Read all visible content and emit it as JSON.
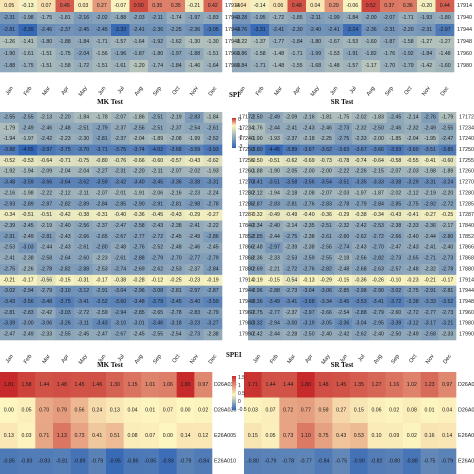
{
  "chart_data": [
    {
      "type": "heatmap",
      "section": "SPI",
      "panel": "MK Test",
      "title": "",
      "columns": [
        "Jan",
        "Feb",
        "Mar",
        "Apr",
        "May",
        "Jun",
        "Jul",
        "Aug",
        "Sep",
        "Oct",
        "Nov",
        "Dec"
      ],
      "rows": [
        "17914",
        "17940",
        "17944",
        "17948",
        "17960",
        "17980"
      ],
      "values": [
        [
          0.05,
          -0.13,
          0.07,
          0.45,
          0.03,
          0.27,
          -0.07,
          0.5,
          0.35,
          0.35,
          -0.21,
          0.42
        ],
        [
          -2.31,
          -1.98,
          -1.75,
          -1.81,
          -2.16,
          -2.02,
          -1.88,
          -2.03,
          -2.11,
          -1.74,
          -1.97,
          -1.83
        ],
        [
          -2.81,
          -3.39,
          -2.46,
          -2.37,
          -2.45,
          -2.45,
          -3.33,
          -2.41,
          -2.36,
          -2.25,
          -2.36,
          -3.05
        ],
        [
          -1.26,
          -1.41,
          -1.8,
          -1.88,
          -1.84,
          -1.71,
          -1.57,
          -1.64,
          -1.92,
          -1.62,
          -1.3,
          -1.3
        ],
        [
          -1.9,
          -1.61,
          -1.51,
          -1.75,
          -2.04,
          -1.56,
          -1.96,
          -1.87,
          -1.8,
          -1.97,
          -1.88,
          -1.51
        ],
        [
          -1.88,
          -1.75,
          -1.51,
          -1.58,
          -1.72,
          -1.51,
          -1.61,
          -1.2,
          -1.74,
          -1.84,
          -1.46,
          -1.64
        ]
      ]
    },
    {
      "type": "heatmap",
      "section": "SPI",
      "panel": "SR Test",
      "title": "",
      "columns": [
        "Jan",
        "Feb",
        "Mar",
        "Apr",
        "May",
        "Jun",
        "Jul",
        "Aug",
        "Sep",
        "Oct",
        "Nov",
        "Dec"
      ],
      "rows": [
        "17914",
        "17940",
        "17944",
        "17948",
        "17960",
        "17980"
      ],
      "values": [
        [
          0.04,
          -0.14,
          0.06,
          0.48,
          0.04,
          0.29,
          -0.06,
          0.52,
          0.37,
          0.36,
          -0.2,
          0.44
        ],
        [
          -2.28,
          -1.95,
          -1.72,
          -1.85,
          -2.11,
          -1.99,
          -1.84,
          -2.0,
          -2.07,
          -1.71,
          -1.93,
          -1.8
        ],
        [
          -2.76,
          -3.31,
          -2.41,
          -2.3,
          -2.4,
          -2.41,
          -3.24,
          -2.36,
          -2.31,
          -2.2,
          -2.31,
          -2.97
        ],
        [
          -1.22,
          -1.37,
          -1.77,
          -1.84,
          -1.8,
          -1.67,
          -1.53,
          -1.6,
          -1.87,
          -1.58,
          -1.27,
          -1.27
        ],
        [
          -1.86,
          -1.58,
          -1.48,
          -1.71,
          -1.99,
          -1.53,
          -1.91,
          -1.82,
          -1.76,
          -1.92,
          -1.84,
          -1.48
        ],
        [
          -1.84,
          -1.71,
          -1.48,
          -1.55,
          -1.68,
          -1.48,
          -1.57,
          -1.17,
          -1.7,
          -1.79,
          -1.42,
          -1.6
        ]
      ]
    },
    {
      "type": "heatmap",
      "section": "SPEI",
      "panel": "MK Test",
      "title": "",
      "columns": [
        "Jan",
        "Feb",
        "Mar",
        "Apr",
        "May",
        "Jun",
        "Jul",
        "Aug",
        "Sep",
        "Oct",
        "Nov",
        "Dec"
      ],
      "rows": [
        "17172",
        "17234",
        "17240",
        "17250",
        "17255",
        "17260",
        "17270",
        "17280",
        "17285",
        "17287",
        "17840",
        "17852",
        "17866",
        "17868",
        "17880",
        "17914",
        "17944",
        "17948",
        "17960",
        "17980",
        "17990"
      ],
      "values": [
        [
          -2.55,
          -2.55,
          -2.13,
          -2.2,
          -1.84,
          -1.78,
          -2.07,
          -1.86,
          -2.51,
          -2.19,
          -2.83,
          -1.84
        ],
        [
          -1.79,
          -2.49,
          -2.46,
          -2.48,
          -2.51,
          -2.79,
          -2.37,
          -2.56,
          -2.51,
          -2.37,
          -2.54,
          -2.61
        ],
        [
          -1.94,
          -1.97,
          -2.42,
          -2.23,
          -2.3,
          -2.81,
          -2.37,
          -2.04,
          -1.89,
          -2.08,
          -1.99,
          -2.52
        ],
        [
          -3.88,
          -4.55,
          -3.97,
          -3.75,
          -3.7,
          -3.71,
          -3.75,
          -3.74,
          -4.02,
          -3.68,
          -3.59,
          -3.93
        ],
        [
          -0.52,
          -0.53,
          -0.64,
          -0.71,
          -0.75,
          -0.8,
          -0.76,
          -0.66,
          -0.6,
          -0.57,
          -0.43,
          -0.62
        ],
        [
          -1.92,
          -1.94,
          -2.09,
          -2.04,
          -2.04,
          -2.27,
          -2.31,
          -2.2,
          -2.11,
          -2.07,
          -2.02,
          -1.93
        ],
        [
          -3.48,
          -3.59,
          -3.66,
          -3.64,
          -3.62,
          -3.59,
          -3.42,
          -3.4,
          -3.45,
          -3.36,
          -3.38,
          -3.31
        ],
        [
          -2.16,
          -1.98,
          -2.22,
          -2.12,
          -2.11,
          -2.07,
          -2.01,
          -1.91,
          -2.06,
          -2.16,
          -2.23,
          -2.24
        ],
        [
          -2.93,
          -2.89,
          -2.87,
          -2.82,
          -2.89,
          -2.84,
          -2.85,
          -2.9,
          -2.91,
          -2.81,
          -2.98,
          -2.78
        ],
        [
          -0.34,
          -0.51,
          -0.51,
          -0.42,
          -0.38,
          -0.31,
          -0.4,
          -0.36,
          -0.45,
          -0.43,
          -0.29,
          -0.27
        ],
        [
          -2.39,
          -2.45,
          -2.19,
          -2.4,
          -2.56,
          -2.37,
          -2.47,
          -2.58,
          -2.43,
          -2.38,
          -2.41,
          -2.22
        ],
        [
          -2.91,
          -2.49,
          -2.81,
          -2.43,
          -2.66,
          -2.65,
          -2.67,
          -2.77,
          -2.72,
          -2.45,
          -2.49,
          -2.86
        ],
        [
          -2.53,
          -3.03,
          -2.44,
          -2.43,
          -2.61,
          -2.8,
          -2.48,
          -2.76,
          -2.52,
          -2.48,
          -2.46,
          -2.45
        ],
        [
          -2.41,
          -2.38,
          -2.58,
          -2.64,
          -2.6,
          -2.23,
          -2.61,
          -2.88,
          -2.79,
          -2.7,
          -2.77,
          -2.79
        ],
        [
          -2.75,
          -2.26,
          -2.78,
          -2.82,
          -2.88,
          -2.53,
          -2.74,
          -2.69,
          -2.62,
          -2.53,
          -2.37,
          -2.84
        ],
        [
          -0.21,
          -0.17,
          -0.56,
          -0.15,
          -0.31,
          -0.17,
          -0.38,
          -0.28,
          -0.12,
          -0.25,
          -0.23,
          -0.19
        ],
        [
          -3.02,
          -2.94,
          -2.79,
          -3.1,
          -3.12,
          -2.91,
          -3.04,
          -2.96,
          -3.08,
          -2.81,
          -2.97,
          -2.87
        ],
        [
          -3.43,
          -3.56,
          -3.48,
          -3.75,
          -3.41,
          -3.52,
          -3.6,
          -3.48,
          -3.79,
          -3.45,
          -3.4,
          -3.59
        ],
        [
          -2.81,
          -2.83,
          -2.42,
          -3.03,
          -2.72,
          -2.59,
          -2.94,
          -2.85,
          -2.65,
          -2.78,
          -2.83,
          -2.79
        ],
        [
          -3.39,
          -3.0,
          -3.06,
          -3.26,
          -3.11,
          -3.43,
          -3.1,
          -3.01,
          -3.46,
          -3.18,
          -3.23,
          -3.27
        ],
        [
          -2.47,
          -2.49,
          -2.33,
          -2.55,
          -2.45,
          -2.47,
          -2.67,
          -2.45,
          -2.55,
          -2.54,
          -2.73,
          -2.38
        ]
      ]
    },
    {
      "type": "heatmap",
      "section": "SPEI",
      "panel": "SR Test",
      "title": "",
      "columns": [
        "Jan",
        "Feb",
        "Mar",
        "Apr",
        "May",
        "Jun",
        "Jul",
        "Aug",
        "Sep",
        "Oct",
        "Nov",
        "Dec"
      ],
      "rows": [
        "17172",
        "17234",
        "17240",
        "17250",
        "17255",
        "17260",
        "17270",
        "17280",
        "17285",
        "17287",
        "17840",
        "17852",
        "17866",
        "17868",
        "17880",
        "17914",
        "17944",
        "17948",
        "17960",
        "17980",
        "17990"
      ],
      "values": [
        [
          -2.5,
          -2.49,
          -2.09,
          -2.16,
          -1.81,
          -1.75,
          -2.02,
          -1.83,
          -2.45,
          -2.14,
          -2.76,
          -1.79
        ],
        [
          -1.76,
          -2.44,
          -2.41,
          -2.43,
          -2.46,
          -2.73,
          -2.32,
          -2.5,
          -2.46,
          -2.32,
          -2.49,
          -2.55
        ],
        [
          -1.9,
          -1.93,
          -2.37,
          -2.18,
          -2.25,
          -2.75,
          -2.33,
          -2.0,
          -1.85,
          -2.04,
          -1.95,
          -2.47
        ],
        [
          -3.8,
          -4.45,
          -3.89,
          -3.67,
          -3.62,
          -3.63,
          -3.67,
          -3.66,
          -3.93,
          -3.6,
          -3.51,
          -3.85
        ],
        [
          -0.5,
          -0.51,
          -0.62,
          -0.69,
          -0.73,
          -0.78,
          -0.74,
          -0.64,
          -0.58,
          -0.55,
          -0.41,
          -0.6
        ],
        [
          -1.88,
          -1.9,
          -2.05,
          -2.0,
          -2.0,
          -2.22,
          -2.26,
          -2.15,
          -2.07,
          -2.03,
          -1.98,
          -1.89
        ],
        [
          -3.41,
          -3.51,
          -3.58,
          -3.56,
          -3.54,
          -3.51,
          -3.35,
          -3.33,
          -3.38,
          -3.29,
          -3.31,
          -3.24
        ],
        [
          -2.12,
          -1.94,
          -2.18,
          -2.08,
          -2.07,
          -2.03,
          -1.97,
          -1.87,
          -2.02,
          -2.12,
          -2.19,
          -2.2
        ],
        [
          -2.87,
          -2.83,
          -2.81,
          -2.76,
          -2.83,
          -2.78,
          -2.79,
          -2.84,
          -2.85,
          -2.75,
          -2.92,
          -2.72
        ],
        [
          -0.32,
          -0.49,
          -0.49,
          -0.4,
          -0.36,
          -0.29,
          -0.38,
          -0.34,
          -0.43,
          -0.41,
          -0.27,
          -0.25
        ],
        [
          -2.34,
          -2.4,
          -2.14,
          -2.35,
          -2.51,
          -2.32,
          -2.42,
          -2.53,
          -2.38,
          -2.33,
          -2.36,
          -2.17
        ],
        [
          -2.85,
          -2.44,
          -2.75,
          -2.38,
          -2.61,
          -2.6,
          -2.62,
          -2.72,
          -2.66,
          -2.4,
          -2.44,
          -2.8
        ],
        [
          -2.48,
          -2.97,
          -2.39,
          -2.38,
          -2.56,
          -2.74,
          -2.43,
          -2.7,
          -2.47,
          -2.43,
          -2.41,
          -2.4
        ],
        [
          -2.36,
          -2.33,
          -2.53,
          -2.59,
          -2.55,
          -2.18,
          -2.56,
          -2.82,
          -2.73,
          -2.65,
          -2.71,
          -2.73
        ],
        [
          -2.69,
          -2.21,
          -2.72,
          -2.76,
          -2.82,
          -2.48,
          -2.68,
          -2.63,
          -2.57,
          -2.48,
          -2.32,
          -2.78
        ],
        [
          -0.19,
          -0.15,
          -0.54,
          -0.13,
          -0.29,
          -0.15,
          -0.36,
          -0.26,
          -0.1,
          -0.23,
          -0.21,
          -0.17
        ],
        [
          -2.96,
          -2.88,
          -2.73,
          -3.04,
          -3.06,
          -2.85,
          -2.98,
          -2.9,
          -3.02,
          -2.75,
          -2.91,
          -2.81
        ],
        [
          -3.36,
          -3.49,
          -3.41,
          -3.68,
          -3.34,
          -3.45,
          -3.53,
          -3.41,
          -3.72,
          -3.38,
          -3.33,
          -3.52
        ],
        [
          -2.75,
          -2.77,
          -2.37,
          -2.97,
          -2.66,
          -2.54,
          -2.88,
          -2.79,
          -2.6,
          -2.72,
          -2.77,
          -2.73
        ],
        [
          -3.32,
          -2.94,
          -3.0,
          -3.19,
          -3.05,
          -3.36,
          -3.04,
          -2.95,
          -3.39,
          -3.12,
          -3.17,
          -3.21
        ],
        [
          -2.42,
          -2.44,
          -2.28,
          -2.5,
          -2.4,
          -2.42,
          -2.62,
          -2.4,
          -2.5,
          -2.49,
          -2.68,
          -2.33
        ]
      ]
    },
    {
      "type": "heatmap",
      "section": "",
      "panel": "MK Test",
      "title": "",
      "columns": [
        "Jan",
        "Feb",
        "Mar",
        "Apr",
        "May",
        "Jun",
        "Jul",
        "Aug",
        "Sep",
        "Oct",
        "Nov",
        "Dec"
      ],
      "rows": [
        "D26A033",
        "D26A036",
        "E26A005",
        "E26A010"
      ],
      "values": [
        [
          1.81,
          1.58,
          1.44,
          1.48,
          1.45,
          1.46,
          1.3,
          1.15,
          1.01,
          1.06,
          1.8,
          0.97
        ],
        [
          0.0,
          0.05,
          0.7,
          0.79,
          0.56,
          0.24,
          0.13,
          0.04,
          0.01,
          0.07,
          0.0,
          0.02
        ],
        [
          0.13,
          0.03,
          0.71,
          1.13,
          0.73,
          0.41,
          0.51,
          0.08,
          0.07,
          0.0,
          0.14,
          0.12
        ],
        [
          -0.85,
          -0.83,
          -0.83,
          -0.81,
          -0.89,
          -0.79,
          -0.95,
          -0.86,
          -0.85,
          -0.93,
          -0.79,
          -0.84
        ]
      ]
    },
    {
      "type": "heatmap",
      "section": "",
      "panel": "SR Test",
      "title": "",
      "columns": [
        "Jan",
        "Feb",
        "Mar",
        "Apr",
        "May",
        "Jun",
        "Jul",
        "Aug",
        "Sep",
        "Oct",
        "Nov",
        "Dec"
      ],
      "rows": [
        "D26A033",
        "D26A036",
        "E26A005",
        "E26A010"
      ],
      "values": [
        [
          1.71,
          1.44,
          1.44,
          1.8,
          1.48,
          1.45,
          1.35,
          1.27,
          1.16,
          1.02,
          1.23,
          0.97
        ],
        [
          0.03,
          0.07,
          0.72,
          0.77,
          0.59,
          0.27,
          0.15,
          0.06,
          0.02,
          0.08,
          0.01,
          0.04
        ],
        [
          0.15,
          0.05,
          0.73,
          1.1,
          0.75,
          0.43,
          0.53,
          0.1,
          0.09,
          0.02,
          0.16,
          0.14
        ],
        [
          -0.8,
          -0.79,
          -0.78,
          -0.77,
          -0.84,
          -0.75,
          -0.9,
          -0.82,
          -0.8,
          -0.88,
          -0.75,
          -0.79
        ]
      ]
    }
  ],
  "labels": {
    "spi_section": "SPI",
    "spei_section": "SPEI",
    "mk_test": "MK Test",
    "sr_test": "SR Test"
  },
  "legends": {
    "spei": [
      "0",
      "-1",
      "-2",
      "-3"
    ],
    "bottom": [
      "1.5",
      "1",
      "0.5",
      "0",
      "-0.5"
    ]
  },
  "colors": {
    "pos_max": "#c62a2a",
    "neutral": "#fdf6c0",
    "neg_max": "#2f63b5"
  }
}
